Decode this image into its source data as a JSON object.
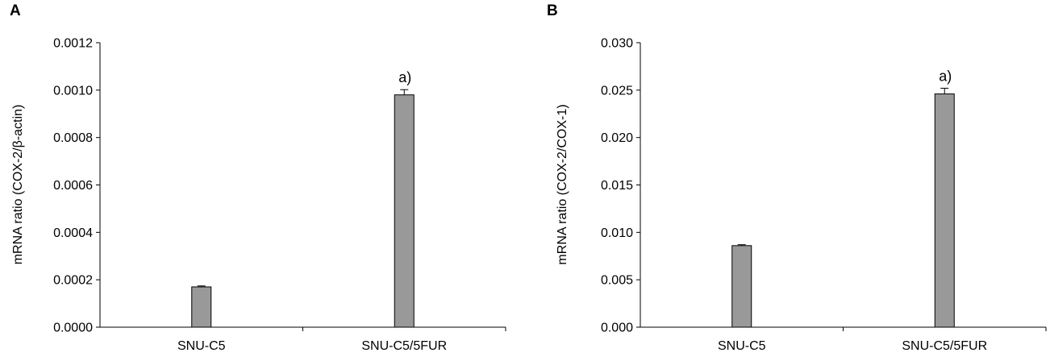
{
  "chart_data": [
    {
      "panel": "A",
      "type": "bar",
      "title": "",
      "xlabel": "",
      "ylabel": "mRNA ratio (COX-2/β-actin)",
      "categories": [
        "SNU-C5",
        "SNU-C5/5FUR"
      ],
      "series": [
        {
          "values": [
            0.00017,
            0.00098
          ],
          "errors": [
            4e-06,
            2.2e-05
          ]
        }
      ],
      "annotations": [
        "",
        "a)"
      ],
      "ylim": [
        0,
        0.0012
      ],
      "yticks": [
        "0.0000",
        "0.0002",
        "0.0004",
        "0.0006",
        "0.0008",
        "0.0010",
        "0.0012"
      ],
      "bar_color": "#999999",
      "grid": false,
      "legend": "none"
    },
    {
      "panel": "B",
      "type": "bar",
      "title": "",
      "xlabel": "",
      "ylabel": "mRNA ratio (COX-2/COX-1)",
      "categories": [
        "SNU-C5",
        "SNU-C5/5FUR"
      ],
      "series": [
        {
          "values": [
            0.0086,
            0.0246
          ],
          "errors": [
            0.0001,
            0.0006
          ]
        }
      ],
      "annotations": [
        "",
        "a)"
      ],
      "ylim": [
        0,
        0.03
      ],
      "yticks": [
        "0.000",
        "0.005",
        "0.010",
        "0.015",
        "0.020",
        "0.025",
        "0.030"
      ],
      "bar_color": "#999999",
      "grid": false,
      "legend": "none"
    }
  ]
}
